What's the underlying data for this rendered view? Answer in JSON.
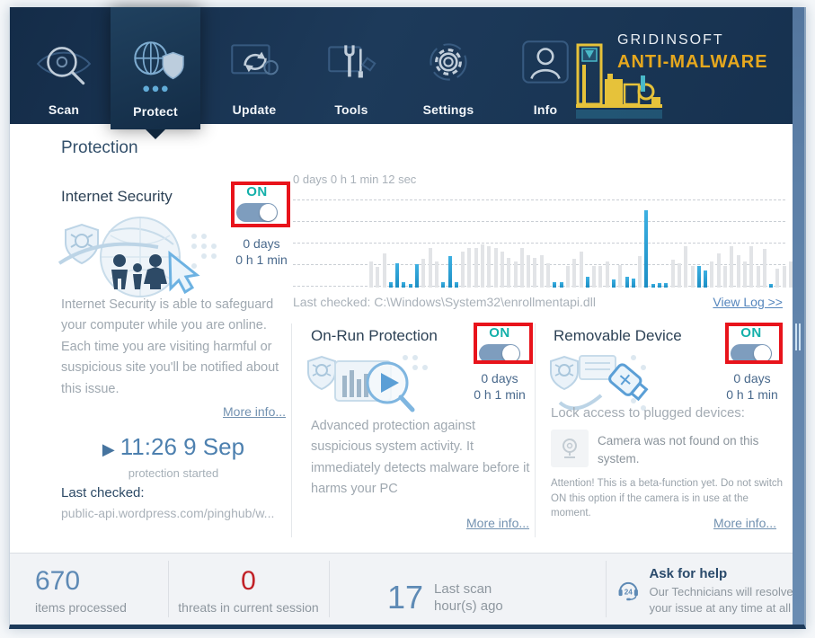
{
  "nav": {
    "tabs": [
      {
        "label": "Scan"
      },
      {
        "label": "Protect"
      },
      {
        "label": "Update"
      },
      {
        "label": "Tools"
      },
      {
        "label": "Settings"
      },
      {
        "label": "Info"
      }
    ],
    "brand_line1": "GRIDINSOFT",
    "brand_line2": "ANTI-MALWARE"
  },
  "page": {
    "title": "Protection"
  },
  "internet_security": {
    "title": "Internet Security",
    "toggle_label": "ON",
    "uptime_line1": "0 days",
    "uptime_line2": "0 h 1 min",
    "description": "Internet Security is able to safeguard your computer while you are online. Each time you are visiting harmful or suspicious site you'll  be notified about this issue.",
    "more_info": "More info...",
    "started_time": "11:26 9 Sep",
    "started_caption": "protection started",
    "last_checked_label": "Last checked:",
    "last_checked_value": "public-api.wordpress.com/pinghub/w..."
  },
  "chart": {
    "timer": "0 days 0 h 1 min 12 sec",
    "last_checked": "Last checked: C:\\Windows\\System32\\enrollmentapi.dll",
    "view_log": "View Log >>"
  },
  "chart_data": {
    "type": "bar",
    "title": "Protection activity timeline",
    "xlabel": "",
    "ylabel": "",
    "ylim": [
      0,
      100
    ],
    "grid": "dashed-horizontal-5-lines",
    "legend": "none",
    "note": "values are percent of plot height; c=g gray (scanned items), c=b blue (highlighted activity)",
    "bars": [
      {
        "h": 30,
        "c": "g"
      },
      {
        "h": 24,
        "c": "g"
      },
      {
        "h": 40,
        "c": "g"
      },
      {
        "h": 6,
        "c": "b"
      },
      {
        "h": 28,
        "c": "b"
      },
      {
        "h": 6,
        "c": "b"
      },
      {
        "h": 4,
        "c": "b"
      },
      {
        "h": 27,
        "c": "b"
      },
      {
        "h": 33,
        "c": "g"
      },
      {
        "h": 46,
        "c": "g"
      },
      {
        "h": 30,
        "c": "g"
      },
      {
        "h": 6,
        "c": "b"
      },
      {
        "h": 36,
        "c": "b"
      },
      {
        "h": 6,
        "c": "b"
      },
      {
        "h": 42,
        "c": "g"
      },
      {
        "h": 46,
        "c": "g"
      },
      {
        "h": 46,
        "c": "g"
      },
      {
        "h": 50,
        "c": "g"
      },
      {
        "h": 48,
        "c": "g"
      },
      {
        "h": 46,
        "c": "g"
      },
      {
        "h": 42,
        "c": "g"
      },
      {
        "h": 34,
        "c": "g"
      },
      {
        "h": 30,
        "c": "g"
      },
      {
        "h": 46,
        "c": "g"
      },
      {
        "h": 38,
        "c": "g"
      },
      {
        "h": 34,
        "c": "g"
      },
      {
        "h": 38,
        "c": "g"
      },
      {
        "h": 28,
        "c": "g"
      },
      {
        "h": 6,
        "c": "b"
      },
      {
        "h": 6,
        "c": "b"
      },
      {
        "h": 25,
        "c": "g"
      },
      {
        "h": 33,
        "c": "g"
      },
      {
        "h": 42,
        "c": "g"
      },
      {
        "h": 13,
        "c": "b"
      },
      {
        "h": 25,
        "c": "g"
      },
      {
        "h": 25,
        "c": "g"
      },
      {
        "h": 30,
        "c": "g"
      },
      {
        "h": 9,
        "c": "b"
      },
      {
        "h": 26,
        "c": "g"
      },
      {
        "h": 13,
        "c": "b"
      },
      {
        "h": 10,
        "c": "b"
      },
      {
        "h": 36,
        "c": "g"
      },
      {
        "h": 90,
        "c": "b"
      },
      {
        "h": 4,
        "c": "b"
      },
      {
        "h": 5,
        "c": "b"
      },
      {
        "h": 5,
        "c": "b"
      },
      {
        "h": 32,
        "c": "g"
      },
      {
        "h": 28,
        "c": "g"
      },
      {
        "h": 48,
        "c": "g"
      },
      {
        "h": 25,
        "c": "g"
      },
      {
        "h": 25,
        "c": "b"
      },
      {
        "h": 20,
        "c": "b"
      },
      {
        "h": 30,
        "c": "g"
      },
      {
        "h": 40,
        "c": "g"
      },
      {
        "h": 25,
        "c": "g"
      },
      {
        "h": 48,
        "c": "g"
      },
      {
        "h": 38,
        "c": "g"
      },
      {
        "h": 30,
        "c": "g"
      },
      {
        "h": 48,
        "c": "g"
      },
      {
        "h": 25,
        "c": "g"
      },
      {
        "h": 45,
        "c": "g"
      },
      {
        "h": 4,
        "c": "b"
      },
      {
        "h": 22,
        "c": "g"
      },
      {
        "h": 25,
        "c": "g"
      },
      {
        "h": 30,
        "c": "g"
      },
      {
        "h": 35,
        "c": "g"
      }
    ]
  },
  "on_run": {
    "title": "On-Run Protection",
    "toggle_label": "ON",
    "uptime_line1": "0 days",
    "uptime_line2": "0 h 1 min",
    "description": "Advanced protection against suspicious system activity. It immediately detects malware before it harms your PC",
    "more_info": "More info..."
  },
  "removable": {
    "title": "Removable Device",
    "toggle_label": "ON",
    "uptime_line1": "0 days",
    "uptime_line2": "0 h 1 min",
    "lock_label": "Lock access to plugged devices:",
    "camera_text": "Camera was not found on this system.",
    "attention": "Attention! This is a beta-function yet. Do not switch ON this option if the camera is in use at the moment.",
    "more_info": "More info..."
  },
  "footer": {
    "items_processed": {
      "value": "670",
      "label": "items processed"
    },
    "threats": {
      "value": "0",
      "label": "threats in current session"
    },
    "last_scan": {
      "value": "17",
      "label_line1": "Last scan",
      "label_line2": "hour(s) ago"
    },
    "help": {
      "icon_label": "24",
      "title": "Ask for help",
      "text": "Our Technicians will resolve your issue at any time at all"
    }
  },
  "colors": {
    "accent_blue_bar": "#2b9ed2",
    "toggle_on_text": "#14b0aa",
    "annotation_red": "#e8131b",
    "brand_gold": "#e6a81e",
    "threat_red": "#c12127",
    "stat_blue": "#5e8ab5",
    "nav_navy": "#1d3a5a"
  }
}
